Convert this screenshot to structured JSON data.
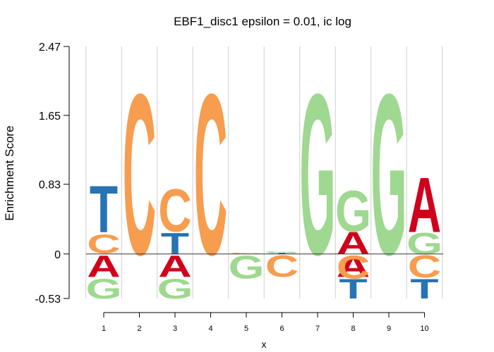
{
  "chart_data": {
    "type": "sequence-logo",
    "title": "EBF1_disc1 epsilon = 0.01, ic log",
    "xlabel": "x",
    "ylabel": "Enrichment Score",
    "yticks": [
      "2.47",
      "1.65",
      "0.83",
      "0",
      "-0.53"
    ],
    "ylim": [
      -0.53,
      2.47
    ],
    "xticks": [
      "1",
      "2",
      "3",
      "4",
      "5",
      "6",
      "7",
      "8",
      "9",
      "10"
    ],
    "grid": "vertical",
    "colors": {
      "A": "#d0021b",
      "C": "#f79d4f",
      "G": "#9fd890",
      "T": "#2674b3"
    },
    "positions": [
      {
        "pos": "1",
        "stack": [
          {
            "letter": "A",
            "from": -0.01,
            "to": -0.27
          },
          {
            "letter": "G",
            "from": -0.29,
            "to": -0.53
          },
          {
            "letter": "C",
            "from": 0.01,
            "to": 0.24
          },
          {
            "letter": "T",
            "from": 0.26,
            "to": 0.83
          }
        ]
      },
      {
        "pos": "2",
        "stack": [
          {
            "letter": "C",
            "from": 0.0,
            "to": 1.96
          }
        ]
      },
      {
        "pos": "3",
        "stack": [
          {
            "letter": "A",
            "from": -0.01,
            "to": -0.27
          },
          {
            "letter": "G",
            "from": -0.29,
            "to": -0.53
          },
          {
            "letter": "T",
            "from": 0.0,
            "to": 0.26
          },
          {
            "letter": "C",
            "from": 0.27,
            "to": 0.79
          }
        ]
      },
      {
        "pos": "4",
        "stack": [
          {
            "letter": "C",
            "from": 0.0,
            "to": 1.96
          }
        ]
      },
      {
        "pos": "5",
        "stack": [
          {
            "letter": "C",
            "from": 0.0,
            "to": 0.015
          },
          {
            "letter": "G",
            "from": -0.01,
            "to": -0.29
          }
        ]
      },
      {
        "pos": "6",
        "stack": [
          {
            "letter": "T",
            "from": 0.0,
            "to": 0.015
          },
          {
            "letter": "G",
            "from": 0.015,
            "to": 0.03
          },
          {
            "letter": "C",
            "from": -0.01,
            "to": -0.27
          }
        ]
      },
      {
        "pos": "7",
        "stack": [
          {
            "letter": "G",
            "from": 0.0,
            "to": 1.96
          }
        ]
      },
      {
        "pos": "8",
        "stack": [
          {
            "letter": "A",
            "from": -0.01,
            "to": -0.27
          },
          {
            "letter": "C",
            "from": -0.01,
            "to": -0.29
          },
          {
            "letter": "T",
            "from": -0.29,
            "to": -0.53
          },
          {
            "letter": "A",
            "from": 0.0,
            "to": 0.27
          },
          {
            "letter": "G",
            "from": 0.27,
            "to": 0.77
          }
        ]
      },
      {
        "pos": "9",
        "stack": [
          {
            "letter": "G",
            "from": 0.0,
            "to": 1.96
          }
        ]
      },
      {
        "pos": "10",
        "stack": [
          {
            "letter": "C",
            "from": -0.01,
            "to": -0.28
          },
          {
            "letter": "T",
            "from": -0.29,
            "to": -0.53
          },
          {
            "letter": "G",
            "from": 0.0,
            "to": 0.26
          },
          {
            "letter": "A",
            "from": 0.26,
            "to": 0.93
          }
        ]
      }
    ]
  }
}
